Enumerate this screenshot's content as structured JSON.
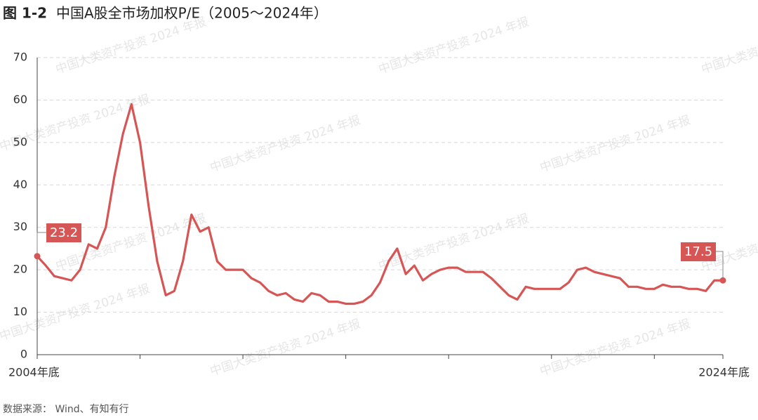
{
  "chart_data": {
    "type": "line",
    "figure_label": "图 1-2",
    "title": "中国A股全市场加权P/E（2005～2024年）",
    "source": "数据来源：  Wind、有知有行",
    "watermark": "中国大类资产投资 2024 年报",
    "categories": [
      "2004年底",
      null,
      null,
      null,
      null,
      null,
      null,
      null,
      null,
      null,
      null,
      null,
      null,
      null,
      null,
      null,
      null,
      null,
      null,
      null,
      null,
      null,
      null,
      null,
      null,
      null,
      null,
      null,
      null,
      null,
      null,
      null,
      null,
      null,
      null,
      null,
      null,
      null,
      null,
      null,
      null,
      null,
      null,
      null,
      null,
      null,
      null,
      null,
      null,
      null,
      null,
      null,
      null,
      null,
      null,
      null,
      null,
      null,
      null,
      null,
      null,
      null,
      null,
      null,
      null,
      null,
      null,
      null,
      null,
      null,
      null,
      null,
      null,
      null,
      null,
      null,
      null,
      null,
      null,
      null,
      "2024年底"
    ],
    "values": [
      23.2,
      21,
      18.5,
      18,
      17.5,
      20,
      26,
      25,
      30,
      42,
      52,
      59,
      50,
      35,
      22,
      14,
      15,
      22,
      33,
      29,
      30,
      22,
      20,
      20,
      20,
      18,
      17,
      15,
      14,
      14.5,
      13,
      12.5,
      14.5,
      14,
      12.5,
      12.5,
      12,
      12,
      12.5,
      14,
      17,
      22,
      25,
      19,
      21,
      17.5,
      19,
      20,
      20.5,
      20.5,
      19.5,
      19.5,
      19.5,
      18,
      16,
      14,
      13,
      16,
      15.5,
      15.5,
      15.5,
      15.5,
      17,
      20,
      20.5,
      19.5,
      19,
      18.5,
      18,
      16,
      16,
      15.5,
      15.5,
      16.5,
      16,
      16,
      15.5,
      15.5,
      15,
      17.5,
      17.5
    ],
    "color": "#d65555",
    "ylim": [
      0,
      70
    ],
    "yticks": [
      0,
      10,
      20,
      30,
      40,
      50,
      60,
      70
    ],
    "grid": true
  }
}
